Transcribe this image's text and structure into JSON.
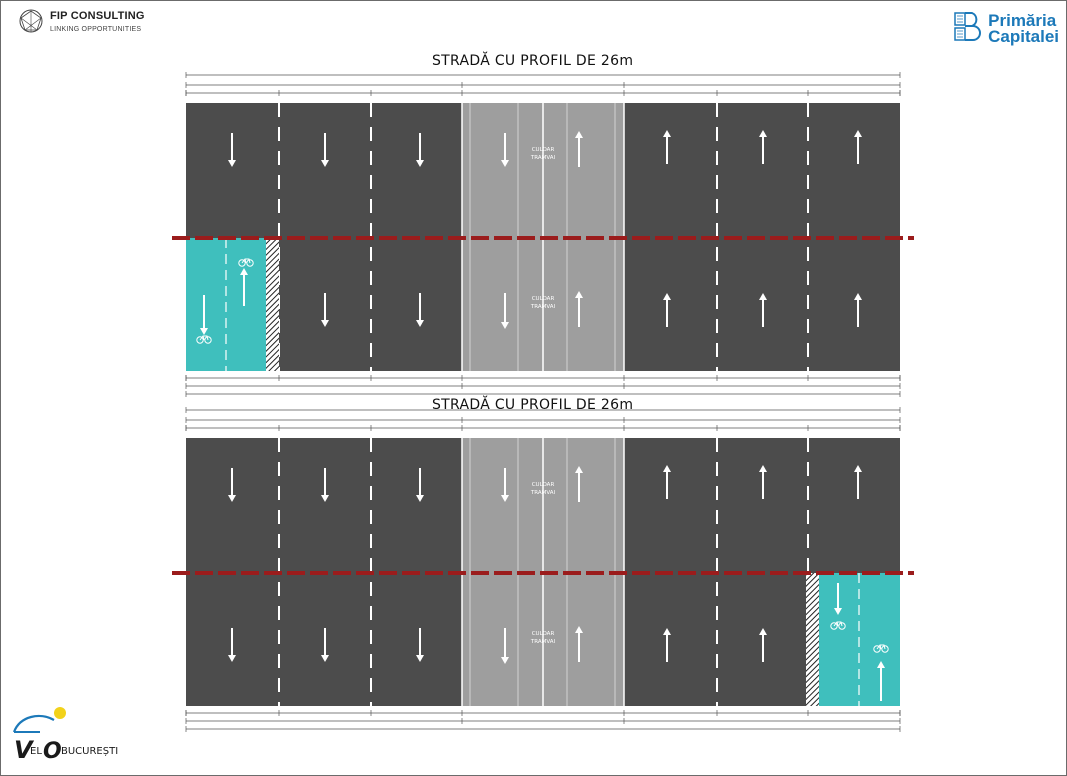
{
  "header": {
    "fip_name": "FIP CONSULTING",
    "fip_tagline": "LINKING OPPORTUNITIES",
    "primaria_line1": "Primăria",
    "primaria_line2": "Capitalei"
  },
  "profiles": [
    {
      "title": "STRADĂ CU PROFIL DE 26m",
      "bike_side": "left",
      "tram_label_1": "CULOAR",
      "tram_label_2": "TRAMVAI"
    },
    {
      "title": "STRADĂ CU PROFIL DE 26m",
      "bike_side": "right",
      "tram_label_1": "CULOAR",
      "tram_label_2": "TRAMVAI"
    }
  ],
  "footer": {
    "velo_logo_part1": "VELO",
    "velo_logo_part2": "BUCUREȘTI"
  },
  "colors": {
    "asphalt": "#4c4c4c",
    "tram_corridor": "#9e9e9e",
    "bike_lane": "#3fbfbd",
    "separator_line": "#9b1c1c",
    "brand_blue": "#1c79b9"
  }
}
